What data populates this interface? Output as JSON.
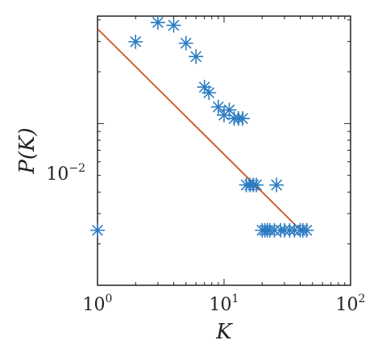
{
  "chart_data": {
    "type": "scatter",
    "title": "",
    "xlabel": "K",
    "ylabel": "P(K)",
    "xscale": "log",
    "yscale": "log",
    "xlim": [
      1,
      100
    ],
    "ylim": [
      0.00115,
      0.0421
    ],
    "grid": false,
    "legend": "none",
    "x_ticks": [
      {
        "value": 1,
        "base": "10",
        "exp": "0"
      },
      {
        "value": 10,
        "base": "10",
        "exp": "1"
      },
      {
        "value": 100,
        "base": "10",
        "exp": "2"
      }
    ],
    "y_ticks": [
      {
        "value": 0.01,
        "base": "10",
        "exp": "−2"
      }
    ],
    "colors": {
      "marker": "#2a7bc2",
      "fit_line": "#c8561e",
      "axes": "#222222"
    },
    "series": [
      {
        "marker": "asterisk",
        "points": [
          {
            "x": 1,
            "y": 0.0024
          },
          {
            "x": 2,
            "y": 0.0299
          },
          {
            "x": 3,
            "y": 0.0387
          },
          {
            "x": 4,
            "y": 0.0372
          },
          {
            "x": 5,
            "y": 0.0293
          },
          {
            "x": 6,
            "y": 0.0245
          },
          {
            "x": 7,
            "y": 0.0163
          },
          {
            "x": 7.6,
            "y": 0.0151
          },
          {
            "x": 9,
            "y": 0.0125
          },
          {
            "x": 10,
            "y": 0.0112
          },
          {
            "x": 11,
            "y": 0.012
          },
          {
            "x": 12,
            "y": 0.0107
          },
          {
            "x": 13,
            "y": 0.0107
          },
          {
            "x": 14,
            "y": 0.0107
          },
          {
            "x": 15,
            "y": 0.0044
          },
          {
            "x": 16,
            "y": 0.0044
          },
          {
            "x": 17,
            "y": 0.0044
          },
          {
            "x": 18,
            "y": 0.0044
          },
          {
            "x": 20,
            "y": 0.0024
          },
          {
            "x": 21,
            "y": 0.0024
          },
          {
            "x": 22,
            "y": 0.0024
          },
          {
            "x": 23,
            "y": 0.0024
          },
          {
            "x": 25,
            "y": 0.0024
          },
          {
            "x": 26,
            "y": 0.0044
          },
          {
            "x": 28,
            "y": 0.0024
          },
          {
            "x": 30,
            "y": 0.0024
          },
          {
            "x": 33,
            "y": 0.0024
          },
          {
            "x": 36,
            "y": 0.0024
          },
          {
            "x": 40,
            "y": 0.0024
          },
          {
            "x": 42,
            "y": 0.0024
          },
          {
            "x": 45,
            "y": 0.0024
          }
        ]
      }
    ],
    "fit_line": {
      "x": [
        1,
        42
      ],
      "y": [
        0.0355,
        0.00233
      ]
    }
  }
}
